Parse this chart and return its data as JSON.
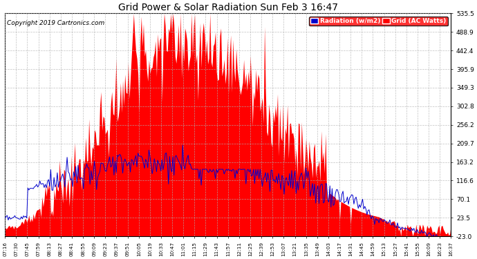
{
  "title": "Grid Power & Solar Radiation Sun Feb 3 16:47",
  "copyright_text": "Copyright 2019 Cartronics.com",
  "legend_labels": [
    "Radiation (w/m2)",
    "Grid (AC Watts)"
  ],
  "y_ticks": [
    -23.0,
    23.5,
    70.1,
    116.6,
    163.2,
    209.7,
    256.2,
    302.8,
    349.3,
    395.9,
    442.4,
    488.9,
    535.5
  ],
  "ylim": [
    -23.0,
    535.5
  ],
  "background_color": "#ffffff",
  "grid_color": "#b0b0b0",
  "fill_color": "#ff0000",
  "line_color": "#0000cc",
  "x_labels": [
    "07:16",
    "07:30",
    "07:45",
    "07:59",
    "08:13",
    "08:27",
    "08:41",
    "08:55",
    "09:09",
    "09:23",
    "09:37",
    "09:51",
    "10:05",
    "10:19",
    "10:33",
    "10:47",
    "11:01",
    "11:15",
    "11:29",
    "11:43",
    "11:57",
    "12:11",
    "12:25",
    "12:39",
    "12:53",
    "13:07",
    "13:21",
    "13:35",
    "13:49",
    "14:03",
    "14:17",
    "14:31",
    "14:45",
    "14:59",
    "15:13",
    "15:27",
    "15:41",
    "15:55",
    "16:09",
    "16:23",
    "16:37"
  ],
  "figwidth": 6.9,
  "figheight": 3.75,
  "dpi": 100
}
